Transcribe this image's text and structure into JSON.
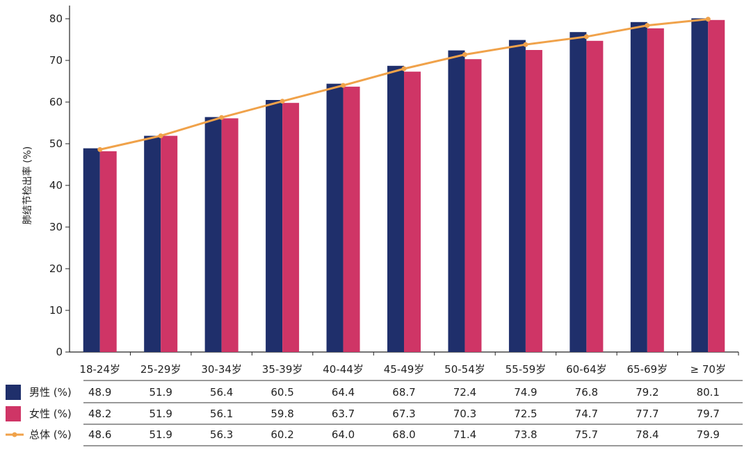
{
  "chart_data": {
    "type": "bar",
    "ylabel": "肺结节检出率 (%)",
    "ylim": [
      0,
      80
    ],
    "yticks": [
      0,
      10,
      20,
      30,
      40,
      50,
      60,
      70,
      80
    ],
    "grid": false,
    "categories": [
      "18-24岁",
      "25-29岁",
      "30-34岁",
      "35-39岁",
      "40-44岁",
      "45-49岁",
      "50-54岁",
      "55-59岁",
      "60-64岁",
      "65-69岁",
      "≥ 70岁"
    ],
    "series": [
      {
        "name": "男性 (%)",
        "type": "bar",
        "color": "#1f2f6b",
        "values": [
          48.9,
          51.9,
          56.4,
          60.5,
          64.4,
          68.7,
          72.4,
          74.9,
          76.8,
          79.2,
          80.1
        ]
      },
      {
        "name": "女性 (%)",
        "type": "bar",
        "color": "#cf3566",
        "values": [
          48.2,
          51.9,
          56.1,
          59.8,
          63.7,
          67.3,
          70.3,
          72.5,
          74.7,
          77.7,
          79.7
        ]
      },
      {
        "name": "总体 (%)",
        "type": "line",
        "color": "#f0a24a",
        "values": [
          48.6,
          51.9,
          56.3,
          60.2,
          64.0,
          68.0,
          71.4,
          73.8,
          75.7,
          78.4,
          79.9
        ]
      }
    ],
    "table": {
      "rows": [
        [
          "48.9",
          "51.9",
          "56.4",
          "60.5",
          "64.4",
          "68.7",
          "72.4",
          "74.9",
          "76.8",
          "79.2",
          "80.1"
        ],
        [
          "48.2",
          "51.9",
          "56.1",
          "59.8",
          "63.7",
          "67.3",
          "70.3",
          "72.5",
          "74.7",
          "77.7",
          "79.7"
        ],
        [
          "48.6",
          "51.9",
          "56.3",
          "60.2",
          "64.0",
          "68.0",
          "71.4",
          "73.8",
          "75.7",
          "78.4",
          "79.9"
        ]
      ]
    }
  }
}
